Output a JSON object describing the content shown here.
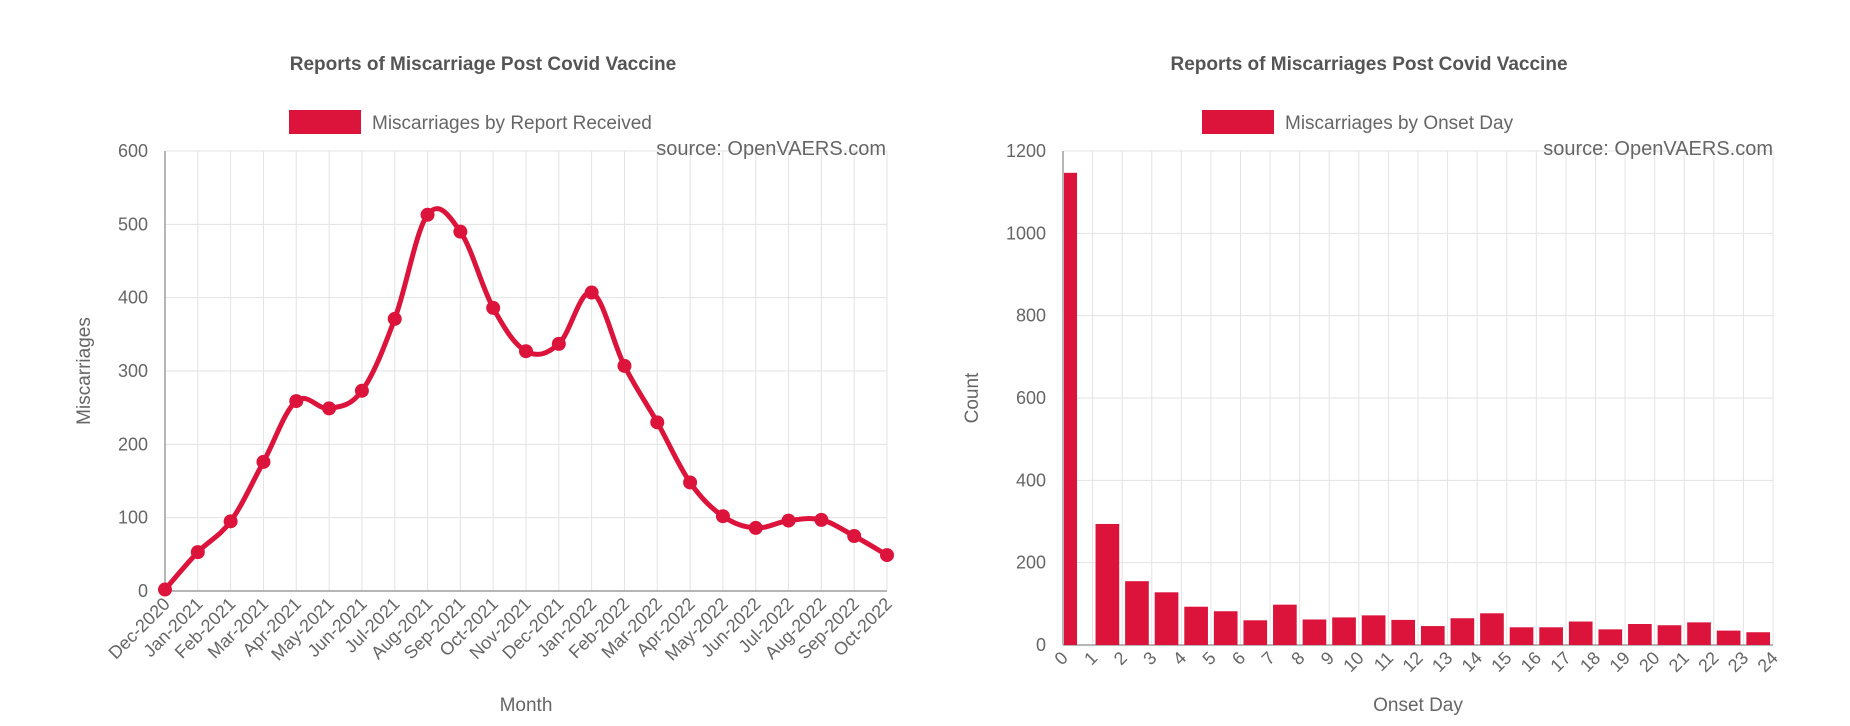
{
  "colors": {
    "series": "#dc143c",
    "grid": "#e3e3e3",
    "axis": "#9e9e9e",
    "title": "#555555",
    "label": "#666666",
    "source": "#666666"
  },
  "chart_data": [
    {
      "type": "line",
      "title": "Reports of Miscarriage Post Covid Vaccine",
      "xlabel": "Month",
      "ylabel": "Miscarriages",
      "ylim": [
        0,
        600
      ],
      "yticks": [
        "0",
        "100",
        "200",
        "300",
        "400",
        "500",
        "600"
      ],
      "grid": true,
      "legend_position": "top",
      "source_text": "source: OpenVAERS.com",
      "categories": [
        "Dec-2020",
        "Jan-2021",
        "Feb-2021",
        "Mar-2021",
        "Apr-2021",
        "May-2021",
        "Jun-2021",
        "Jul-2021",
        "Aug-2021",
        "Sep-2021",
        "Oct-2021",
        "Nov-2021",
        "Dec-2021",
        "Jan-2022",
        "Feb-2022",
        "Mar-2022",
        "Apr-2022",
        "May-2022",
        "Jun-2022",
        "Jul-2022",
        "Aug-2022",
        "Sep-2022",
        "Oct-2022"
      ],
      "series": [
        {
          "name": "Miscarriages by Report Received",
          "values": [
            2,
            53,
            95,
            176,
            259,
            249,
            273,
            371,
            513,
            490,
            386,
            327,
            337,
            407,
            307,
            230,
            148,
            102,
            86,
            96,
            97,
            75,
            49
          ]
        }
      ]
    },
    {
      "type": "bar",
      "title": "Reports of Miscarriages Post Covid Vaccine",
      "xlabel": "Onset Day",
      "ylabel": "Count",
      "ylim": [
        0,
        1200
      ],
      "yticks": [
        "0",
        "200",
        "400",
        "600",
        "800",
        "1000",
        "1200"
      ],
      "grid": true,
      "legend_position": "top",
      "source_text": "source: OpenVAERS.com",
      "categories": [
        "0",
        "1",
        "2",
        "3",
        "4",
        "5",
        "6",
        "7",
        "8",
        "9",
        "10",
        "11",
        "12",
        "13",
        "14",
        "15",
        "16",
        "17",
        "18",
        "19",
        "20",
        "21",
        "22",
        "23",
        "24"
      ],
      "series": [
        {
          "name": "Miscarriages by Onset Day",
          "values": [
            1147,
            294,
            155,
            128,
            93,
            82,
            60,
            98,
            62,
            67,
            72,
            61,
            46,
            65,
            77,
            43,
            43,
            57,
            38,
            51,
            48,
            55,
            35,
            31,
            29
          ]
        }
      ]
    }
  ]
}
